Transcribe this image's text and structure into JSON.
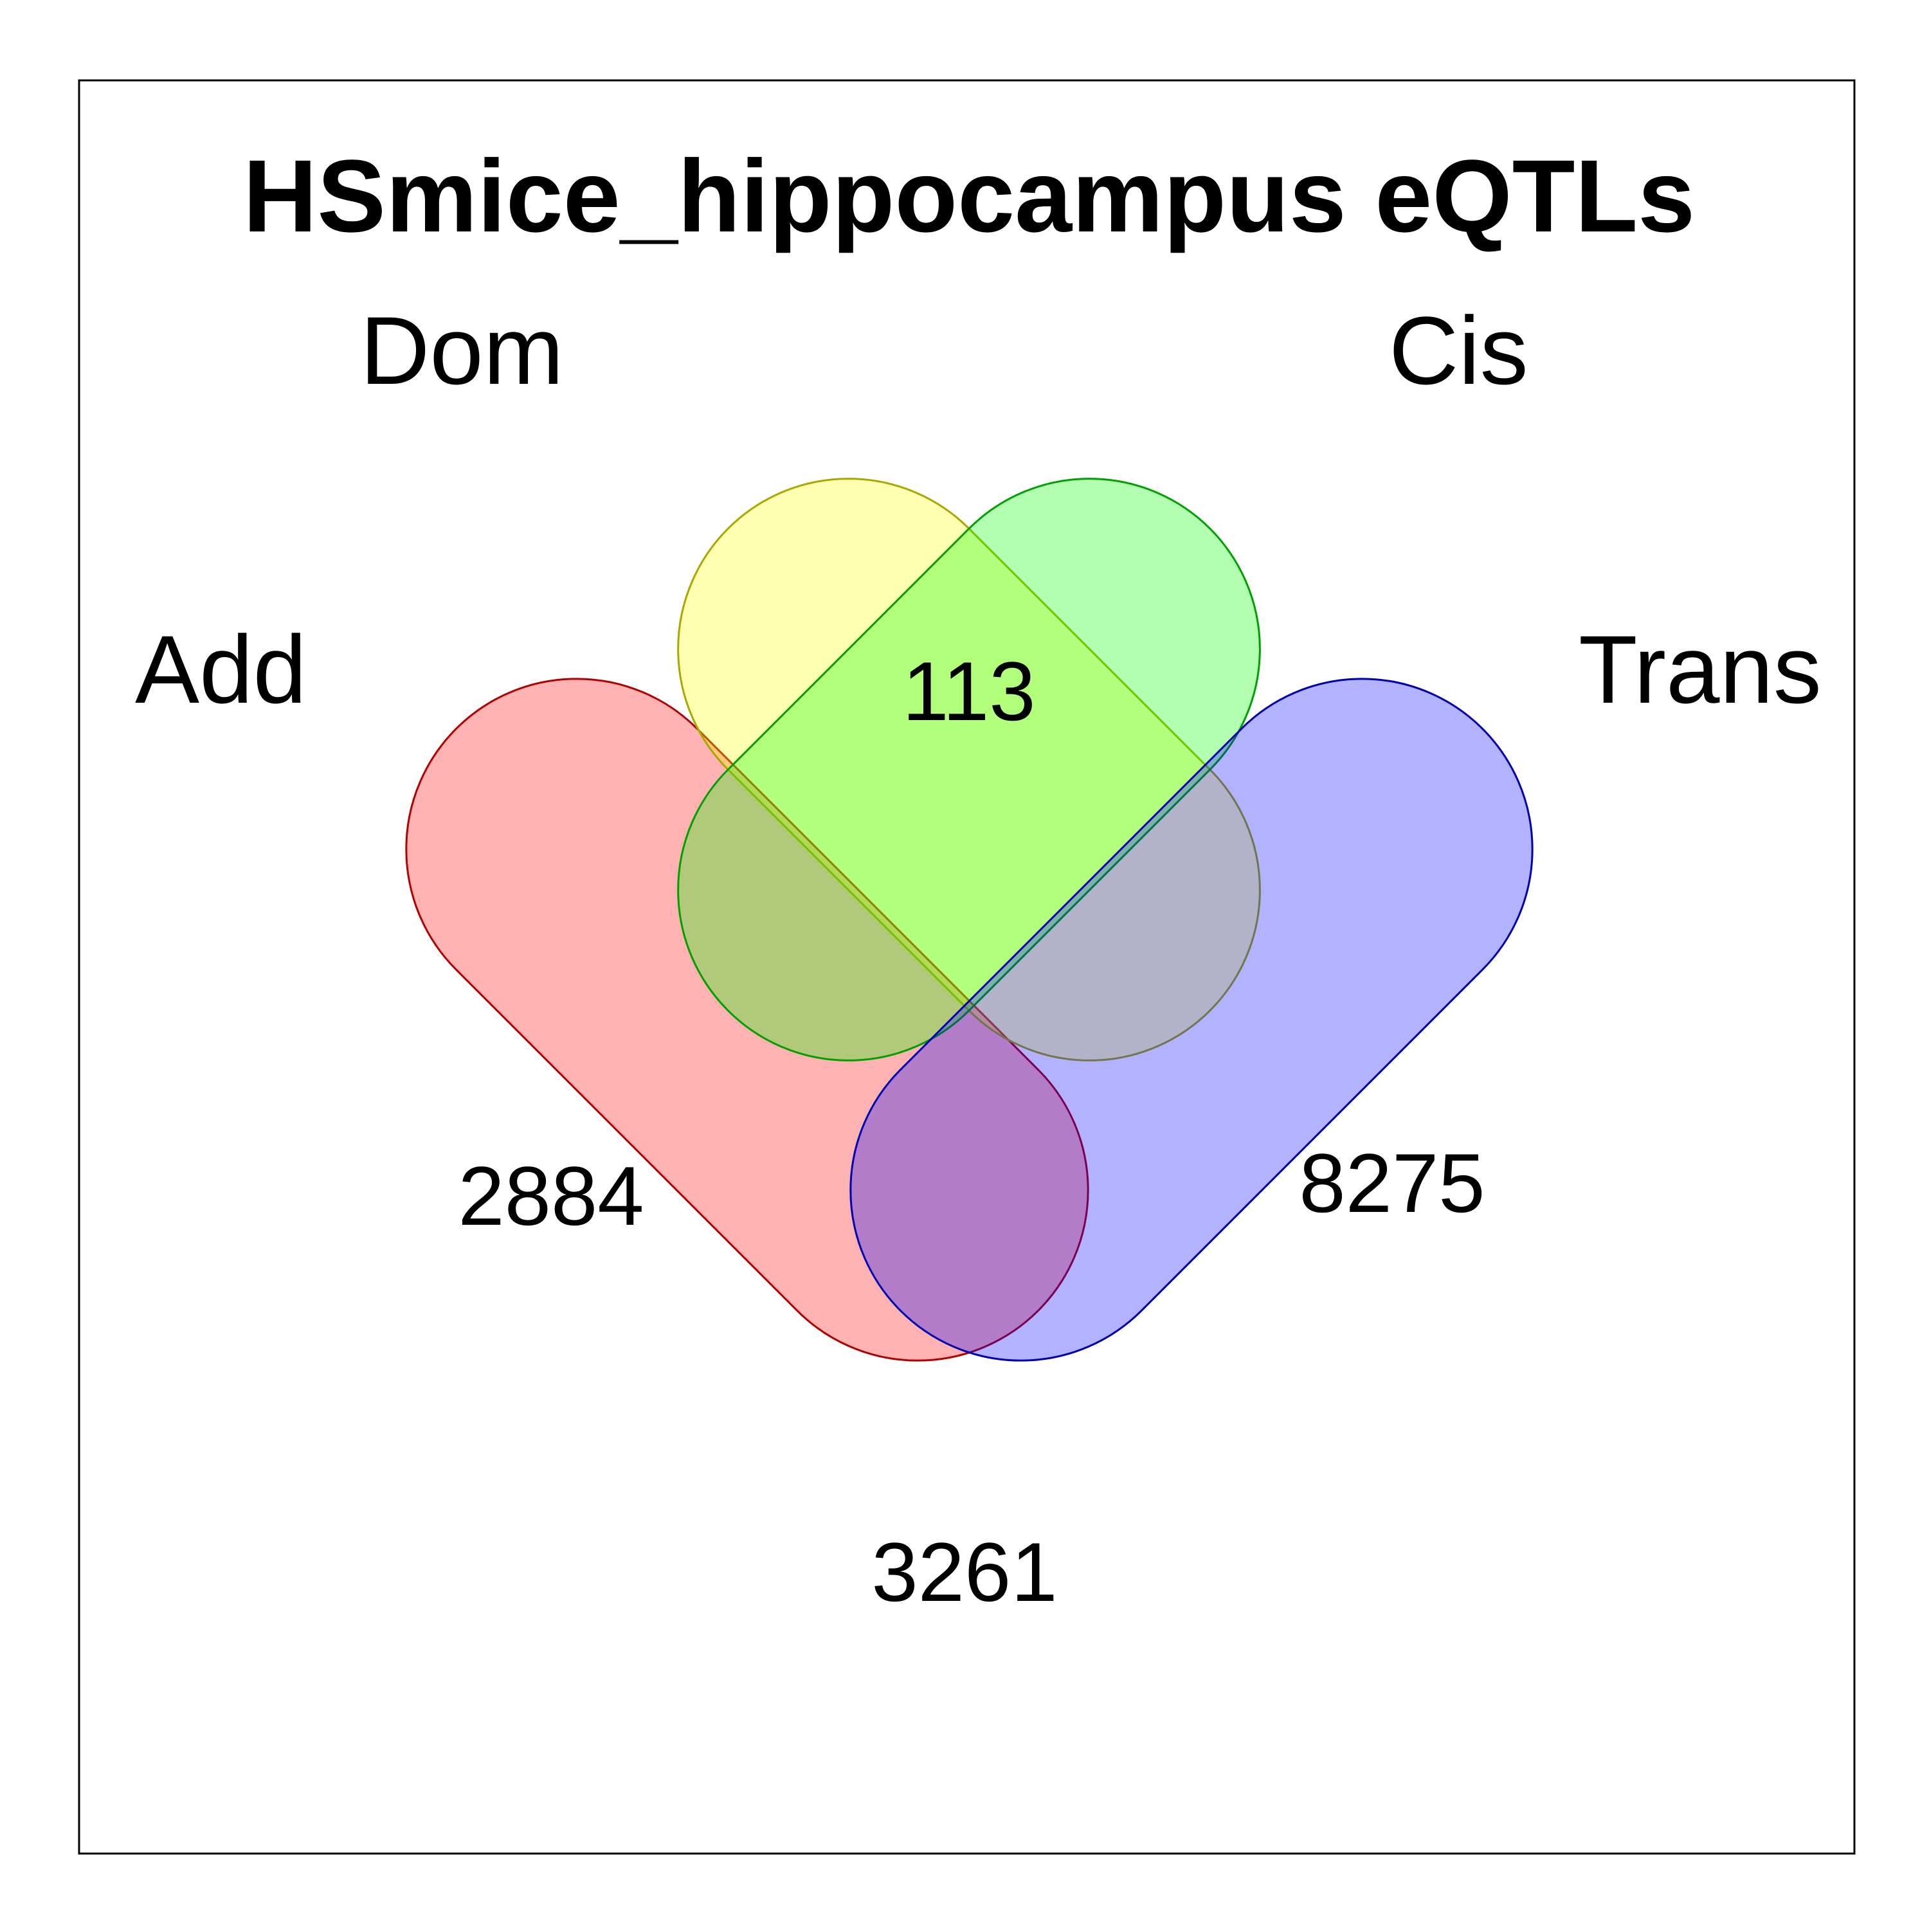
{
  "title": "HSmice_hippocampus eQTLs",
  "sets": [
    {
      "name": "Add",
      "color": "#ff0000",
      "stroke": "#b00000"
    },
    {
      "name": "Dom",
      "color": "#ffff00",
      "stroke": "#a8a800"
    },
    {
      "name": "Cis",
      "color": "#00ff00",
      "stroke": "#00a000"
    },
    {
      "name": "Trans",
      "color": "#0000ff",
      "stroke": "#0000b0"
    }
  ],
  "counts": {
    "dom_cis": "113",
    "add_cis": "2884",
    "dom_trans": "8275",
    "add_trans": "3261"
  }
}
